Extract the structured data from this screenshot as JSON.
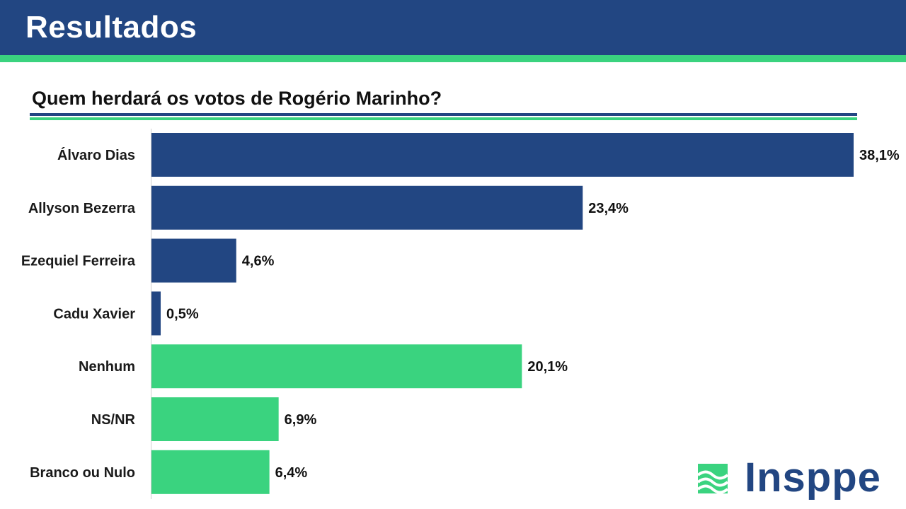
{
  "header": {
    "title": "Resultados"
  },
  "colors": {
    "primary": "#224682",
    "accent": "#3ad37f"
  },
  "chart_data": {
    "type": "bar",
    "orientation": "horizontal",
    "title": "Quem herdará os votos de Rogério Marinho?",
    "categories": [
      "Álvaro Dias",
      "Allyson Bezerra",
      "Ezequiel Ferreira",
      "Cadu Xavier",
      "Nenhum",
      "NS/NR",
      "Branco ou Nulo"
    ],
    "values": [
      38.1,
      23.4,
      4.6,
      0.5,
      20.1,
      6.9,
      6.4
    ],
    "value_labels": [
      "38,1%",
      "23,4%",
      "4,6%",
      "0,5%",
      "20,1%",
      "6,9%",
      "6,4%"
    ],
    "bar_colors": [
      "#224682",
      "#224682",
      "#224682",
      "#224682",
      "#3ad37f",
      "#3ad37f",
      "#3ad37f"
    ],
    "xlim": [
      0,
      38.1
    ],
    "unit": "%",
    "grid": false
  },
  "logo": {
    "text": "Insppe",
    "icon": "wave-logo-icon"
  }
}
